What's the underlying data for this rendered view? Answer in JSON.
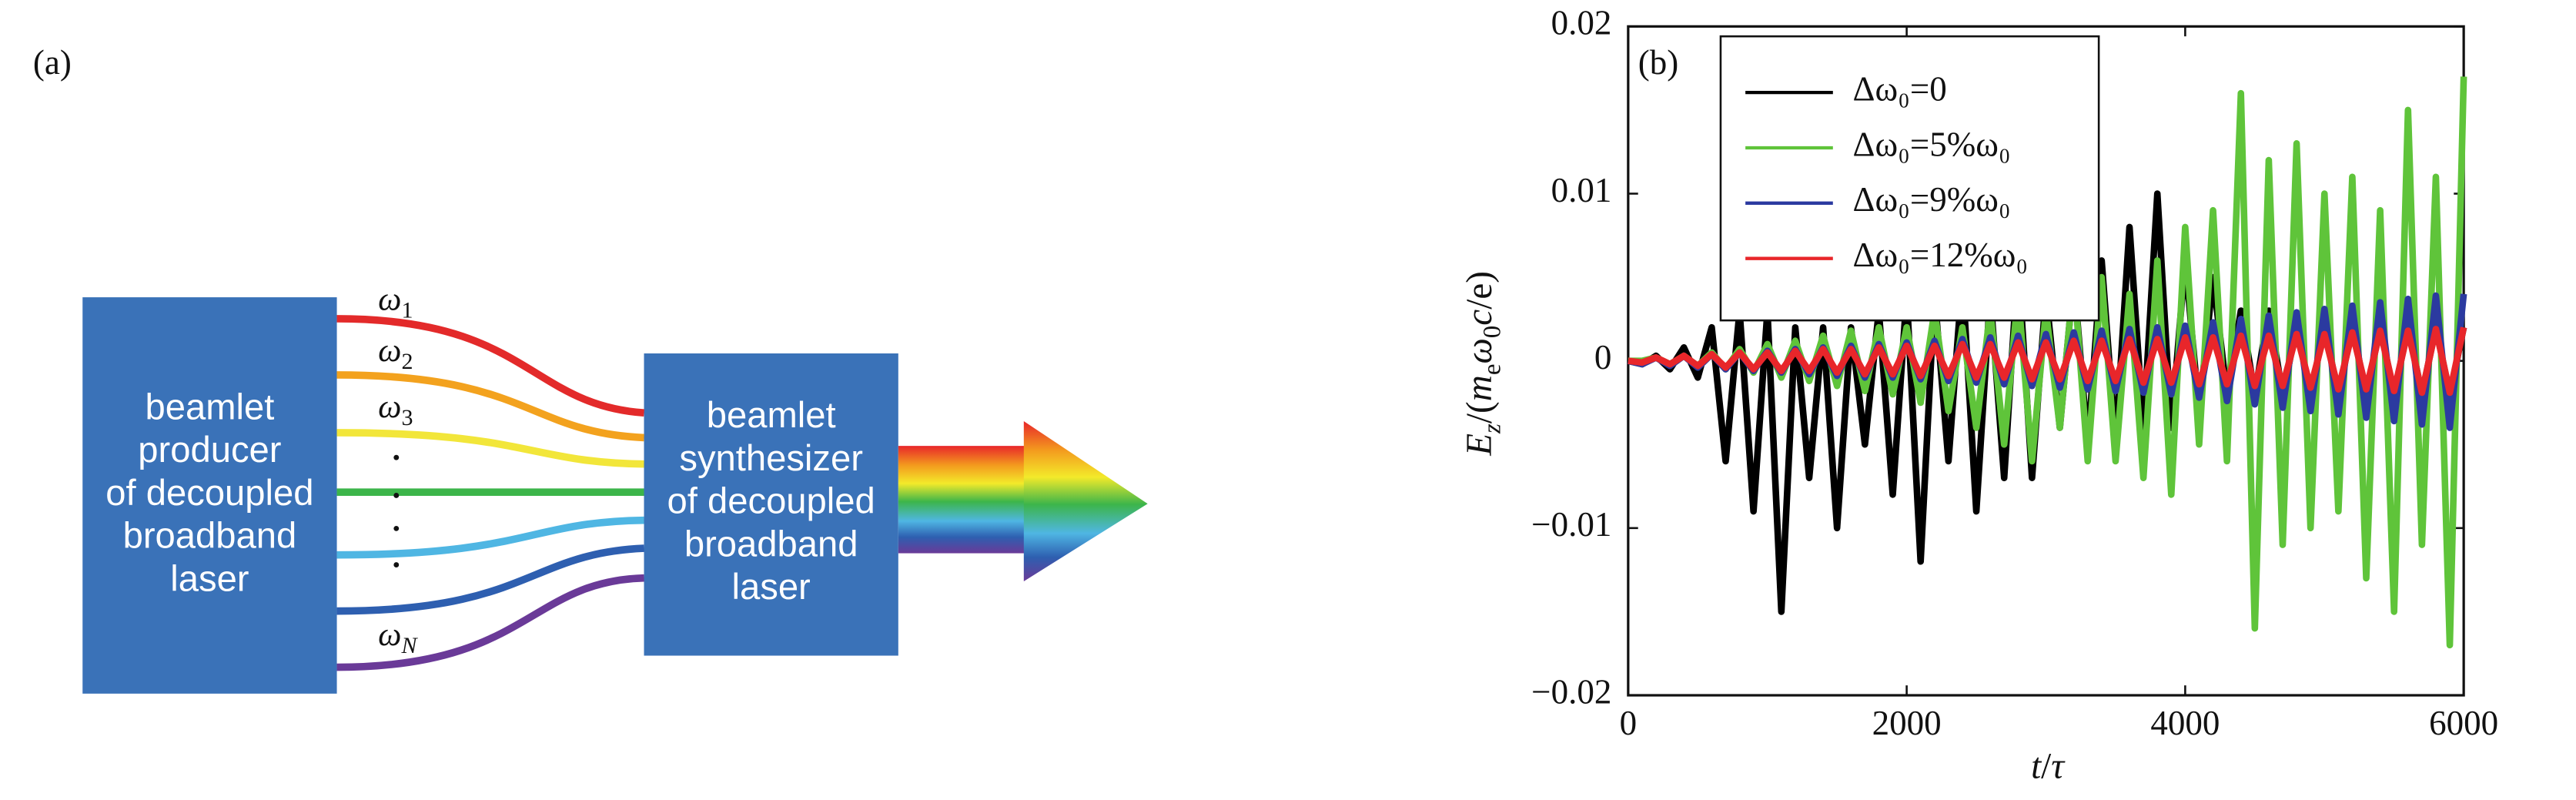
{
  "diagram": {
    "panel_label": "(a)",
    "boxes": [
      {
        "lines": [
          "beamlet",
          "producer",
          "of decoupled",
          "broadband",
          "laser"
        ]
      },
      {
        "lines": [
          "beamlet",
          "synthesizer",
          "of decoupled",
          "broadband",
          "laser"
        ]
      }
    ],
    "beam_labels": [
      [
        {
          "text": "ω",
          "italic": true
        },
        {
          "text": "1",
          "sub": true
        }
      ],
      [
        {
          "text": "ω",
          "italic": true
        },
        {
          "text": "2",
          "sub": true
        }
      ],
      [
        {
          "text": "ω",
          "italic": true
        },
        {
          "text": "3",
          "sub": true
        }
      ],
      [
        {
          "text": "ω",
          "italic": true
        },
        {
          "text": "N",
          "sub": true,
          "italic": true
        }
      ]
    ]
  },
  "chart_data": {
    "type": "line",
    "panel_label": "(b)",
    "xlabel": [
      {
        "text": "t",
        "italic": true
      },
      {
        "text": "/"
      },
      {
        "text": "τ",
        "italic": true
      }
    ],
    "ylabel": [
      {
        "text": "E",
        "italic": true
      },
      {
        "text": "z",
        "sub": true,
        "italic": true
      },
      {
        "text": "/("
      },
      {
        "text": "m",
        "italic": true
      },
      {
        "text": "e",
        "sub": true
      },
      {
        "text": "ω",
        "italic": true
      },
      {
        "text": "0",
        "sub": true
      },
      {
        "text": "c",
        "italic": true
      },
      {
        "text": "/e)"
      }
    ],
    "xlim": [
      0,
      6000
    ],
    "xticks": [
      0,
      2000,
      4000,
      6000
    ],
    "ylim": [
      -0.02,
      0.02
    ],
    "yticks": [
      {
        "value": -0.02,
        "label": "−0.02"
      },
      {
        "value": -0.01,
        "label": "−0.01"
      },
      0,
      0.01,
      0.02
    ],
    "legend": "upper left",
    "x": [
      0,
      100,
      200,
      300,
      400,
      500,
      600,
      700,
      800,
      900,
      1000,
      1100,
      1200,
      1300,
      1400,
      1500,
      1600,
      1700,
      1800,
      1900,
      2000,
      2100,
      2200,
      2300,
      2400,
      2500,
      2600,
      2700,
      2800,
      2900,
      3000,
      3100,
      3200,
      3300,
      3400,
      3500,
      3600,
      3700,
      3800,
      3900,
      4000,
      4100,
      4200,
      4300,
      4400,
      4500,
      4600,
      4700,
      4800,
      4900,
      5000,
      5100,
      5200,
      5300,
      5400,
      5500,
      5600,
      5700,
      5800,
      5900,
      6000
    ],
    "series": [
      {
        "name": "Δω₀=0",
        "color": "#000000",
        "values": [
          0,
          -0.0002,
          0.0003,
          -0.0005,
          0.0008,
          -0.001,
          0.002,
          -0.006,
          0.003,
          -0.009,
          0.003,
          -0.015,
          0.002,
          -0.007,
          0.002,
          -0.01,
          0.002,
          -0.005,
          0.003,
          -0.008,
          0.004,
          -0.012,
          0.004,
          -0.006,
          0.005,
          -0.009,
          0.004,
          -0.007,
          0.006,
          -0.007,
          0.004,
          -0.004,
          0.005,
          -0.005,
          0.006,
          -0.005,
          0.008,
          -0.004,
          0.01,
          -0.004,
          0.006,
          -0.003,
          0.005,
          -0.002,
          0.003,
          -0.002,
          0.003,
          -0.002,
          0.002,
          -0.002,
          0.002,
          -0.002,
          0.002,
          -0.002,
          0.002,
          -0.002,
          0.002,
          -0.002,
          0.002,
          -0.002,
          0.002
        ]
      },
      {
        "name": "Δω₀=5%ω₀",
        "color": "#5fc43a",
        "values": [
          0,
          0,
          0.0002,
          -0.0002,
          0.0003,
          -0.0003,
          0.0005,
          -0.0005,
          0.0007,
          -0.0007,
          0.001,
          -0.001,
          0.0012,
          -0.0012,
          0.0015,
          -0.0015,
          0.0018,
          -0.0018,
          0.002,
          -0.002,
          0.002,
          -0.0025,
          0.003,
          -0.003,
          0.002,
          -0.004,
          0.003,
          -0.005,
          0.004,
          -0.006,
          0.003,
          -0.004,
          0.005,
          -0.006,
          0.005,
          -0.006,
          0.004,
          -0.007,
          0.006,
          -0.008,
          0.008,
          -0.005,
          0.009,
          -0.006,
          0.016,
          -0.016,
          0.012,
          -0.011,
          0.013,
          -0.01,
          0.01,
          -0.009,
          0.011,
          -0.013,
          0.009,
          -0.015,
          0.015,
          -0.011,
          0.011,
          -0.017,
          0.017
        ]
      },
      {
        "name": "Δω₀=9%ω₀",
        "color": "#2b3aa0",
        "values": [
          0,
          -0.0002,
          0.0002,
          -0.0003,
          0.0003,
          -0.0004,
          0.0004,
          -0.0005,
          0.0005,
          -0.0006,
          0.0006,
          -0.0007,
          0.0007,
          -0.0008,
          0.0008,
          -0.0009,
          0.0009,
          -0.001,
          0.001,
          -0.001,
          0.0011,
          -0.0011,
          0.0012,
          -0.0012,
          0.0013,
          -0.0013,
          0.0014,
          -0.0014,
          0.0015,
          -0.0015,
          0.0016,
          -0.0016,
          0.0017,
          -0.0017,
          0.0018,
          -0.0018,
          0.0019,
          -0.0019,
          0.002,
          -0.002,
          0.0021,
          -0.0022,
          0.0023,
          -0.0024,
          0.0025,
          -0.0026,
          0.0027,
          -0.0028,
          0.0029,
          -0.003,
          0.0031,
          -0.0032,
          0.0033,
          -0.0034,
          0.0035,
          -0.0036,
          0.0037,
          -0.0038,
          0.0039,
          -0.004,
          0.004
        ]
      },
      {
        "name": "Δω₀=12%ω₀",
        "color": "#e8262a",
        "values": [
          0,
          -0.0001,
          0.0002,
          -0.0002,
          0.0003,
          -0.0003,
          0.0004,
          -0.0004,
          0.0005,
          -0.0005,
          0.0005,
          -0.0006,
          0.0006,
          -0.0006,
          0.0007,
          -0.0007,
          0.0007,
          -0.0008,
          0.0008,
          -0.0008,
          0.0009,
          -0.0009,
          0.0009,
          -0.0009,
          0.001,
          -0.001,
          0.001,
          -0.001,
          0.0011,
          -0.0011,
          0.0011,
          -0.0011,
          0.0012,
          -0.0012,
          0.0012,
          -0.0012,
          0.0013,
          -0.0013,
          0.0013,
          -0.0013,
          0.0014,
          -0.0014,
          0.0014,
          -0.0014,
          0.0015,
          -0.0015,
          0.0015,
          -0.0015,
          0.0016,
          -0.0016,
          0.0016,
          -0.0017,
          0.0017,
          -0.0017,
          0.0018,
          -0.0018,
          0.0018,
          -0.0019,
          0.0019,
          -0.0019,
          0.002
        ]
      }
    ]
  }
}
